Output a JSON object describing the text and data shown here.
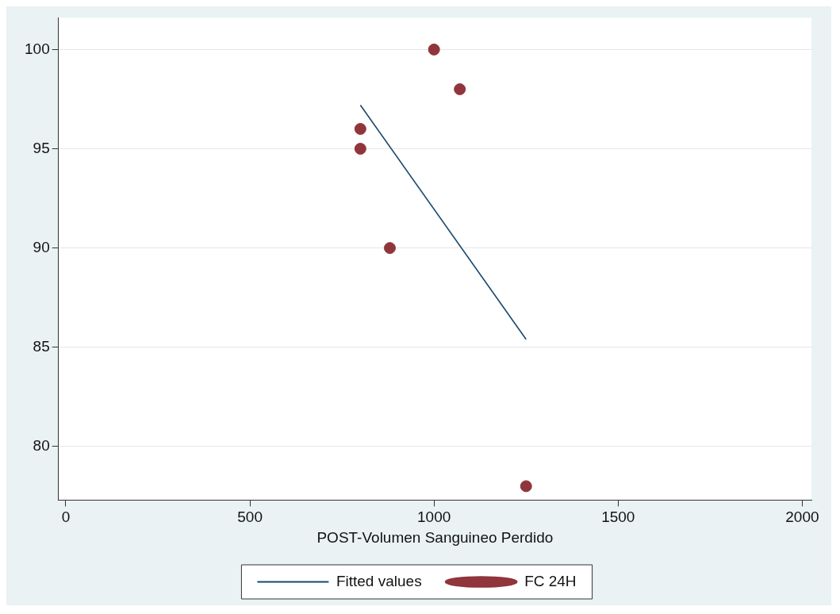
{
  "chart_data": {
    "type": "scatter",
    "xlabel": "POST-Volumen Sanguineo Perdido",
    "xlim": [
      -20,
      2025
    ],
    "xticks": [
      0,
      500,
      1000,
      1500,
      2000
    ],
    "ylim": [
      77.3,
      101.6
    ],
    "yticks": [
      80,
      85,
      90,
      95,
      100
    ],
    "grid": "y",
    "legend": "bottom",
    "series": [
      {
        "name": "Fitted values",
        "type": "line",
        "marker": "none",
        "color": "#1a476f",
        "x": [
          800,
          1250
        ],
        "values": [
          97.2,
          85.4
        ]
      },
      {
        "name": "FC 24H",
        "marker": "circle",
        "color": "#90353b",
        "x": [
          1000,
          1070,
          800,
          800,
          880,
          1250
        ],
        "values": [
          100,
          98,
          96,
          95,
          90,
          78
        ]
      }
    ]
  }
}
